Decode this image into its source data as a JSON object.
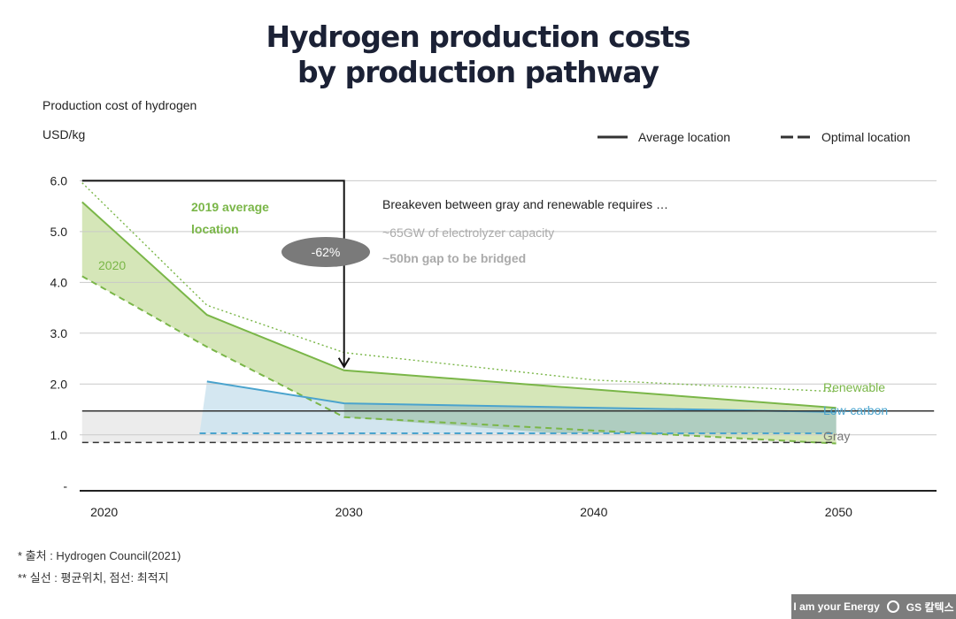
{
  "chart_data": {
    "type": "area",
    "title": [
      "Hydrogen production costs",
      "by production pathway"
    ],
    "ylabel": "Production cost of hydrogen",
    "yunit": "USD/kg",
    "xlim": [
      2019,
      2054
    ],
    "ylim": [
      -0.1,
      6.25
    ],
    "yticks": [
      6.0,
      5.0,
      4.0,
      3.0,
      2.0,
      1.0,
      0
    ],
    "ytick_labels": [
      "6.0",
      "5.0",
      "4.0",
      "3.0",
      "2.0",
      "1.0",
      "-"
    ],
    "xticks": [
      2020,
      2030,
      2040,
      2050
    ],
    "xtick_labels": [
      "2020",
      "2030",
      "2040",
      "2050"
    ],
    "legend": {
      "position": "top-right",
      "average": "Average location",
      "optimal": "Optimal location"
    },
    "series": {
      "renewable_2019_average": {
        "x": [
          2019.1,
          2024.2,
          2029.8,
          2040,
          2049.9
        ],
        "y": [
          5.96,
          3.55,
          2.62,
          2.08,
          1.85
        ]
      },
      "renewable_average": {
        "x": [
          2019.1,
          2024.2,
          2029.8,
          2049.9
        ],
        "y": [
          5.58,
          3.36,
          2.27,
          1.53
        ]
      },
      "renewable_optimal": {
        "x": [
          2019.1,
          2024.2,
          2029.8,
          2049.9
        ],
        "y": [
          4.12,
          2.73,
          1.35,
          0.83
        ]
      },
      "lowcarbon_average": {
        "x": [
          2024.2,
          2029.8,
          2049.9
        ],
        "y": [
          2.05,
          1.62,
          1.45
        ]
      },
      "lowcarbon_optimal": {
        "x": [
          2023.9,
          2049.9
        ],
        "y": [
          1.03,
          1.03
        ]
      },
      "gray_average": {
        "x": [
          2019.1,
          2053.9
        ],
        "y": [
          1.47,
          1.47
        ]
      },
      "gray_optimal": {
        "x": [
          2019.1,
          2049.9
        ],
        "y": [
          0.85,
          0.85
        ]
      }
    },
    "series_labels": {
      "renewable": "Renewable",
      "lowcarbon": "Low-carbon",
      "gray": "Gray"
    },
    "annotations": {
      "avg2019": [
        "2019 average",
        "location"
      ],
      "year2020": "2020",
      "reduction": "-62%",
      "breakeven_title": "Breakeven between gray and renewable requires …",
      "breakeven_capacity": "~65GW of electrolyzer capacity",
      "breakeven_gap": "~50bn gap to be bridged"
    },
    "colors": {
      "renewable": "#7ab648",
      "renewable_fill": "#d5e6b8",
      "lowcarbon": "#4aa3cd",
      "lowcarbon_fill": "#cfe4ef",
      "overlap_fill": "#a9c9b8",
      "gray_fill": "#ececec",
      "axis": "#222222",
      "grid": "#c9c9c9",
      "badge": "#7a7a7a",
      "note_gray": "#aaaaaa"
    }
  },
  "footnotes": {
    "source": "* 출처 : Hydrogen Council(2021)",
    "lines": "** 실선 : 평균위치, 점선: 최적지"
  },
  "brand": {
    "slogan": "I am your Energy",
    "name": "GS 칼텍스"
  }
}
